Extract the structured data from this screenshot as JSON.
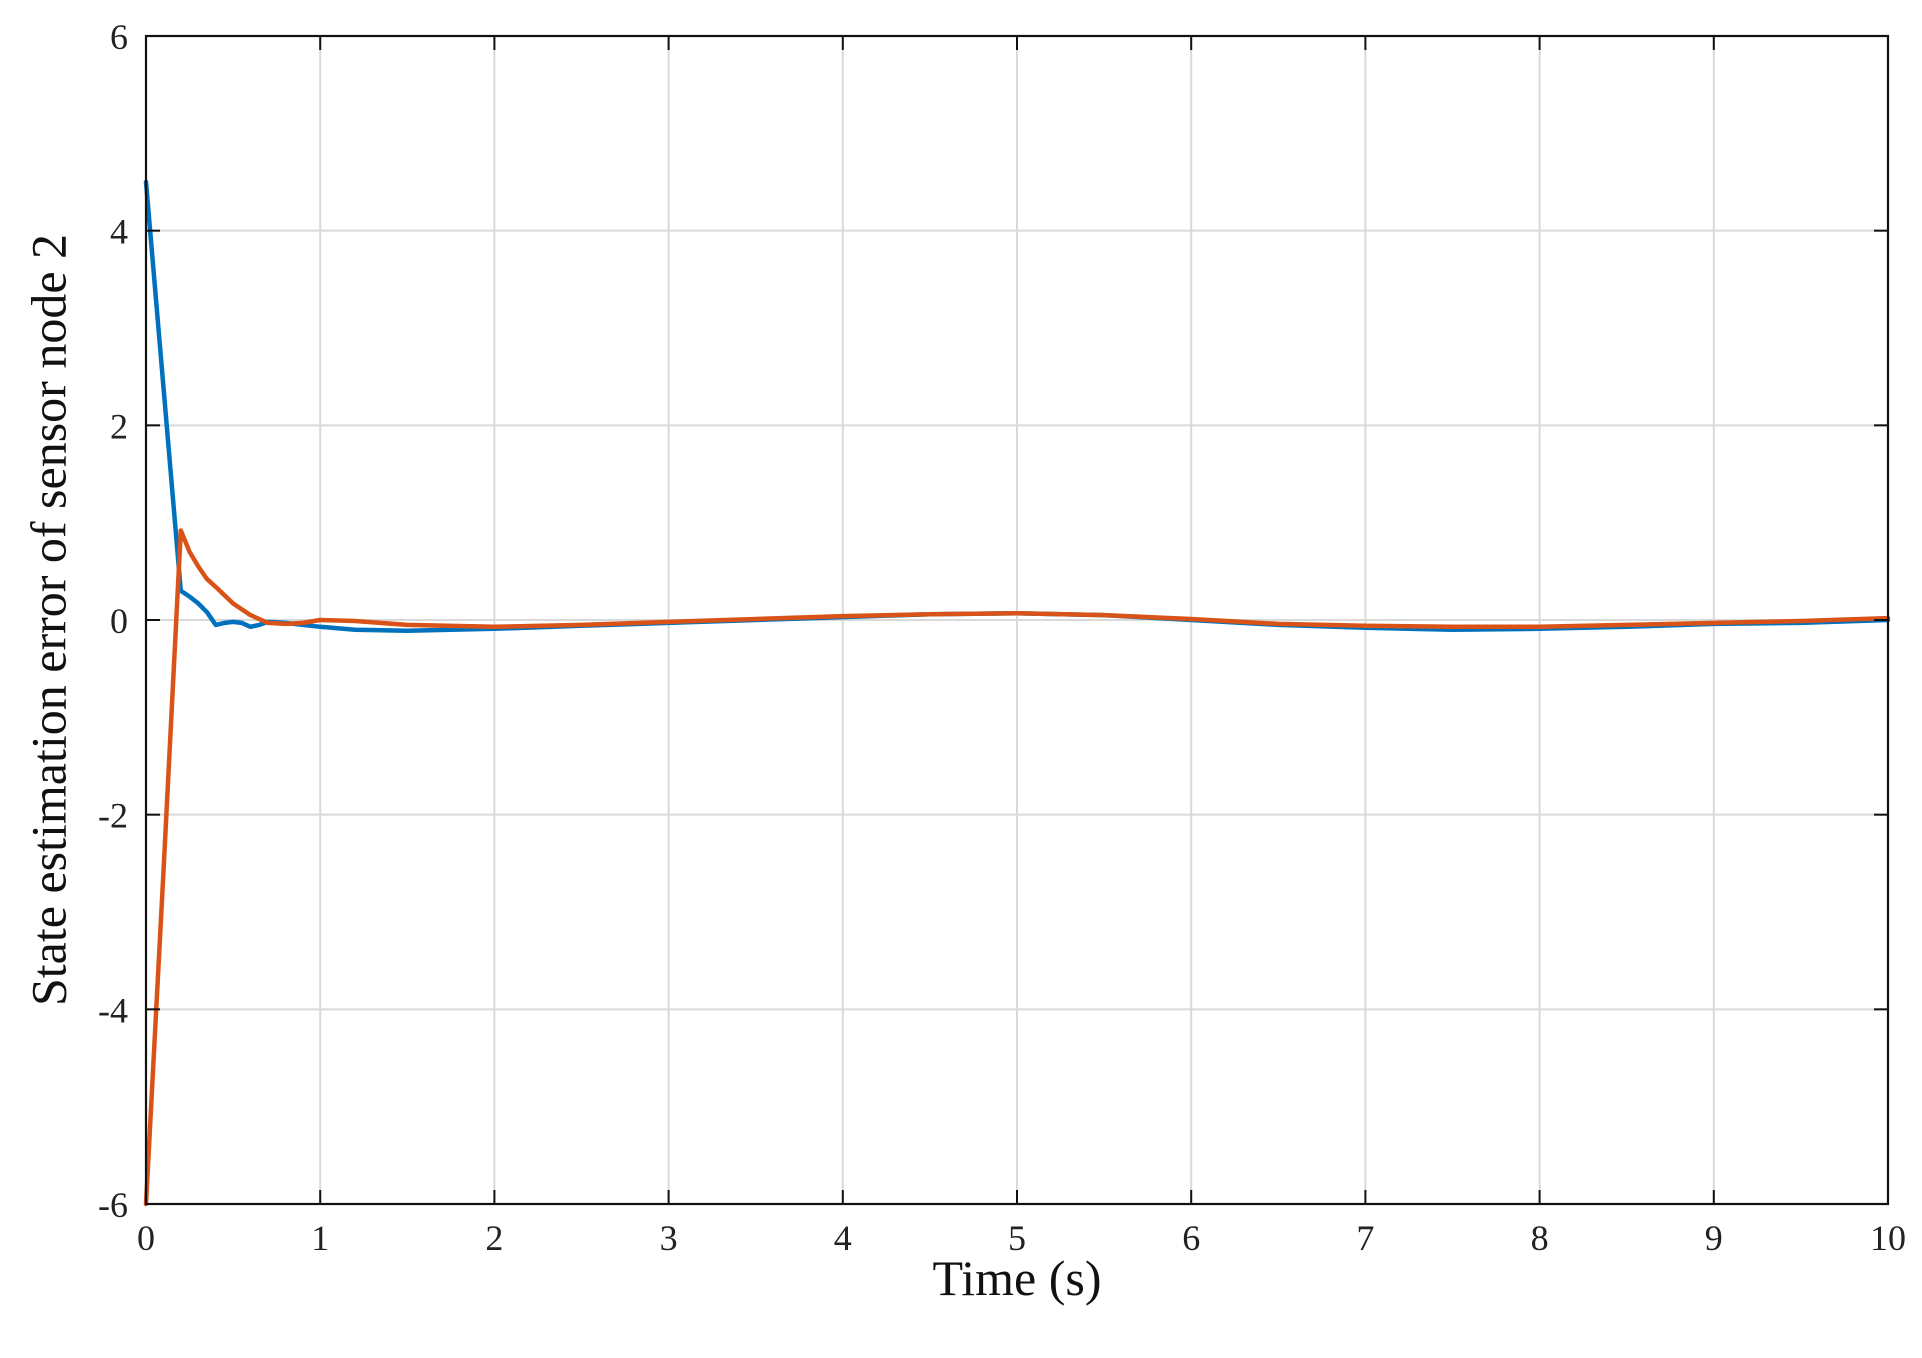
{
  "chart_data": {
    "type": "line",
    "title": "",
    "xlabel": "Time (s)",
    "ylabel": "State estimation error of sensor node 2",
    "xlim": [
      0,
      10
    ],
    "ylim": [
      -6,
      6
    ],
    "xticks": [
      0,
      1,
      2,
      3,
      4,
      5,
      6,
      7,
      8,
      9,
      10
    ],
    "yticks": [
      -6,
      -4,
      -2,
      0,
      2,
      4,
      6
    ],
    "xtick_labels": [
      "0",
      "1",
      "2",
      "3",
      "4",
      "5",
      "6",
      "7",
      "8",
      "9",
      "10"
    ],
    "ytick_labels": [
      "-6",
      "-4",
      "-2",
      "0",
      "2",
      "4",
      "6"
    ],
    "grid": true,
    "legend": "none",
    "series": [
      {
        "color": "#0072BD",
        "x": [
          0,
          0.1,
          0.2,
          0.25,
          0.3,
          0.35,
          0.4,
          0.45,
          0.5,
          0.55,
          0.6,
          0.65,
          0.7,
          0.8,
          0.9,
          1.0,
          1.2,
          1.5,
          2.0,
          2.5,
          3.0,
          3.5,
          4.0,
          4.5,
          5.0,
          5.5,
          6.0,
          6.5,
          7.0,
          7.5,
          8.0,
          8.5,
          9.0,
          9.5,
          10.0
        ],
        "y": [
          4.5,
          2.4,
          0.3,
          0.24,
          0.17,
          0.08,
          -0.05,
          -0.03,
          -0.02,
          -0.03,
          -0.07,
          -0.05,
          -0.02,
          -0.03,
          -0.05,
          -0.07,
          -0.1,
          -0.11,
          -0.09,
          -0.06,
          -0.03,
          0.0,
          0.03,
          0.06,
          0.07,
          0.05,
          0.0,
          -0.05,
          -0.08,
          -0.1,
          -0.09,
          -0.07,
          -0.04,
          -0.03,
          0.0
        ]
      },
      {
        "color": "#D95319",
        "x": [
          0,
          0.1,
          0.2,
          0.25,
          0.3,
          0.35,
          0.4,
          0.5,
          0.6,
          0.7,
          0.8,
          0.9,
          1.0,
          1.2,
          1.5,
          2.0,
          2.5,
          3.0,
          3.5,
          4.0,
          4.5,
          5.0,
          5.5,
          6.0,
          6.5,
          7.0,
          7.5,
          8.0,
          8.5,
          9.0,
          9.5,
          10.0
        ],
        "y": [
          -6.0,
          -2.6,
          0.92,
          0.7,
          0.55,
          0.42,
          0.34,
          0.17,
          0.05,
          -0.03,
          -0.04,
          -0.03,
          0.0,
          -0.01,
          -0.05,
          -0.07,
          -0.05,
          -0.02,
          0.01,
          0.04,
          0.06,
          0.07,
          0.05,
          0.01,
          -0.04,
          -0.06,
          -0.07,
          -0.07,
          -0.05,
          -0.03,
          -0.01,
          0.02
        ]
      }
    ]
  }
}
